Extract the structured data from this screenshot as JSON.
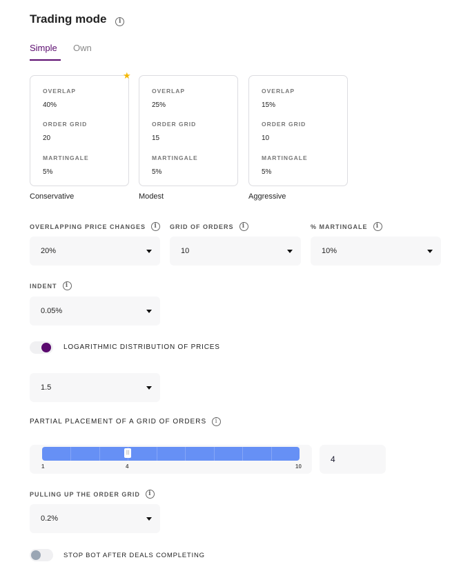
{
  "title": "Trading mode",
  "tabs": [
    {
      "label": "Simple",
      "active": true
    },
    {
      "label": "Own",
      "active": false
    }
  ],
  "presets": [
    {
      "name": "Conservative",
      "recommended": true,
      "overlap_label": "OVERLAP",
      "overlap": "40%",
      "grid_label": "ORDER GRID",
      "grid": "20",
      "mart_label": "MARTINGALE",
      "mart": "5%"
    },
    {
      "name": "Modest",
      "recommended": false,
      "overlap_label": "OVERLAP",
      "overlap": "25%",
      "grid_label": "ORDER GRID",
      "grid": "15",
      "mart_label": "MARTINGALE",
      "mart": "5%"
    },
    {
      "name": "Aggressive",
      "recommended": false,
      "overlap_label": "OVERLAP",
      "overlap": "15%",
      "grid_label": "ORDER GRID",
      "grid": "10",
      "mart_label": "MARTINGALE",
      "mart": "5%"
    }
  ],
  "fields": {
    "overlap": {
      "label": "OVERLAPPING PRICE CHANGES",
      "value": "20%"
    },
    "grid": {
      "label": "GRID OF ORDERS",
      "value": "10"
    },
    "martingale": {
      "label": "% MARTINGALE",
      "value": "10%"
    },
    "indent": {
      "label": "INDENT",
      "value": "0.05%"
    },
    "log": {
      "label": "LOGARITHMIC DISTRIBUTION OF PRICES",
      "enabled": true,
      "value": "1.5"
    },
    "partial": {
      "label": "PARTIAL PLACEMENT OF A GRID OF ORDERS",
      "min": "1",
      "max": "10",
      "value": "4",
      "current_label": "4"
    },
    "pulling": {
      "label": "PULLING UP THE ORDER GRID",
      "value": "0.2%"
    },
    "stop": {
      "label": "STOP BOT AFTER DEALS COMPLETING",
      "enabled": false
    }
  },
  "colors": {
    "accent": "#5a0a6e",
    "slider": "#6690f5",
    "toggle_off": "#9aa6b4"
  }
}
